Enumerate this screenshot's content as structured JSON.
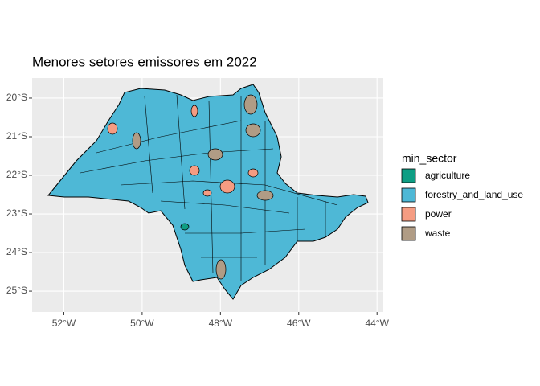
{
  "chart_data": {
    "type": "map",
    "title": "Menores setores emissores em 2022",
    "legend_title": "min_sector",
    "categories": [
      "agriculture",
      "forestry_and_land_use",
      "power",
      "waste"
    ],
    "colors": [
      "#0e9e84",
      "#4eb8d6",
      "#f59c82",
      "#b09c85"
    ],
    "xlim": [
      -52.81,
      -43.84
    ],
    "ylim": [
      -25.54,
      -19.48
    ],
    "xticks": [
      {
        "value": -52,
        "label": "52°W"
      },
      {
        "value": -50,
        "label": "50°W"
      },
      {
        "value": -48,
        "label": "48°W"
      },
      {
        "value": -46,
        "label": "46°W"
      },
      {
        "value": -44,
        "label": "44°W"
      }
    ],
    "yticks": [
      {
        "value": -20,
        "label": "20°S"
      },
      {
        "value": -21,
        "label": "21°S"
      },
      {
        "value": -22,
        "label": "22°S"
      },
      {
        "value": -23,
        "label": "23°S"
      },
      {
        "value": -24,
        "label": "24°S"
      },
      {
        "value": -25,
        "label": "25°S"
      }
    ],
    "grid": true
  }
}
